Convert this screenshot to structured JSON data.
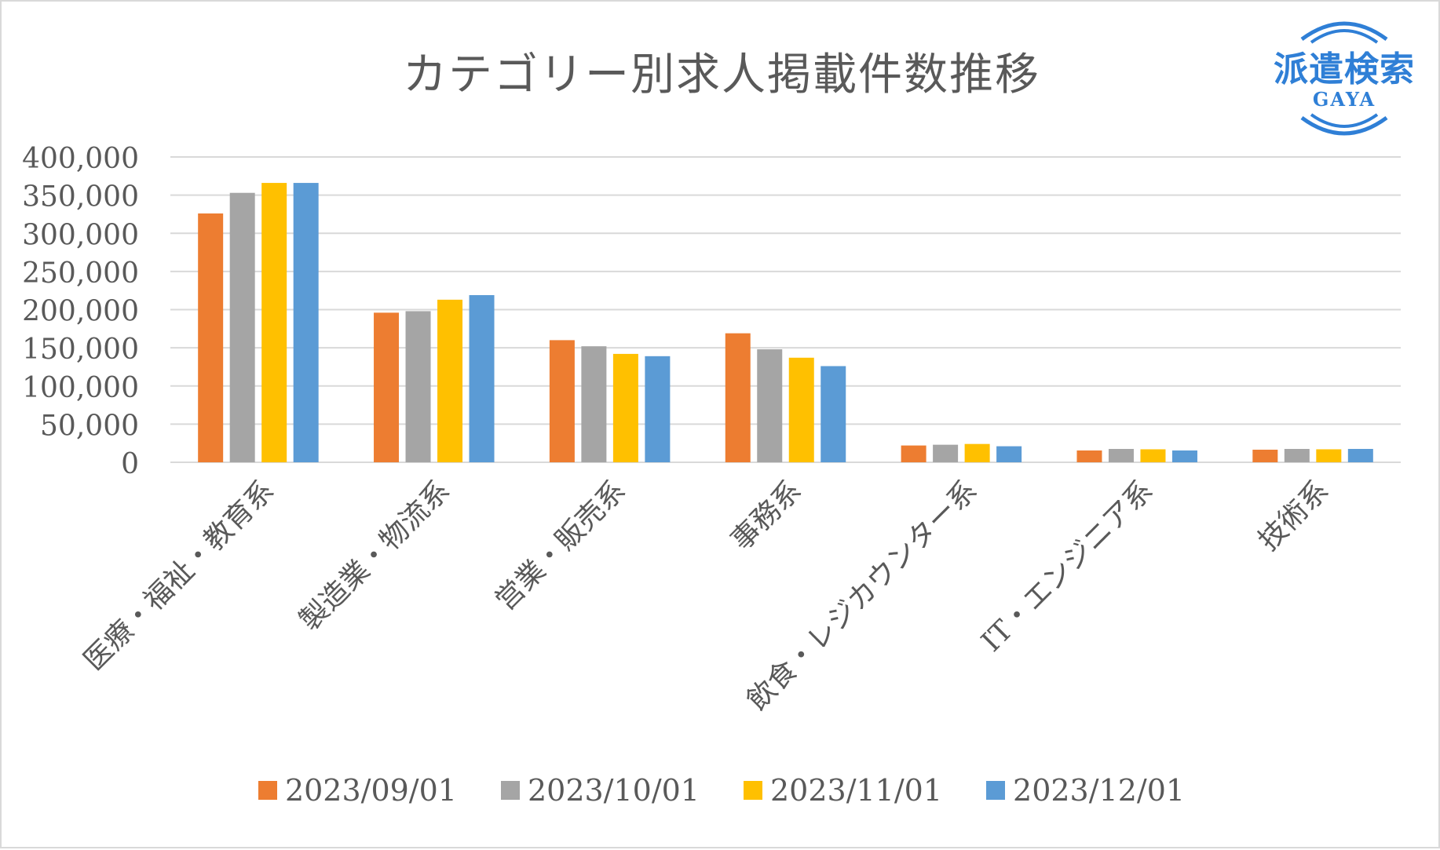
{
  "chart_data": {
    "type": "bar",
    "title": "カテゴリー別求人掲載件数推移",
    "categories": [
      "医療・福祉・教育系",
      "製造業・物流系",
      "営業・販売系",
      "事務系",
      "飲食・レジカウンター系",
      "IT・エンジニア系",
      "技術系"
    ],
    "series": [
      {
        "name": "2023/09/01",
        "color": "#ed7d31",
        "values": [
          326000,
          196000,
          160000,
          169000,
          22000,
          15500,
          16500
        ]
      },
      {
        "name": "2023/10/01",
        "color": "#a5a5a5",
        "values": [
          353000,
          198000,
          152000,
          148000,
          23000,
          17500,
          17500
        ]
      },
      {
        "name": "2023/11/01",
        "color": "#ffc000",
        "values": [
          366000,
          213000,
          142000,
          137000,
          24000,
          17000,
          17000
        ]
      },
      {
        "name": "2023/12/01",
        "color": "#5b9bd5",
        "values": [
          366000,
          219000,
          139000,
          126000,
          21000,
          15500,
          17500
        ]
      }
    ],
    "ylim": [
      0,
      400000
    ],
    "yticks": [
      0,
      50000,
      100000,
      150000,
      200000,
      250000,
      300000,
      350000,
      400000
    ],
    "ytick_labels": [
      "0",
      "50,000",
      "100,000",
      "150,000",
      "200,000",
      "250,000",
      "300,000",
      "350,000",
      "400,000"
    ],
    "xlabel": "",
    "ylabel": "",
    "grid": true,
    "legend_position": "bottom"
  },
  "logo": {
    "text": "派遣検索",
    "subtext": "GAYA",
    "color": "#2f7fd6"
  }
}
